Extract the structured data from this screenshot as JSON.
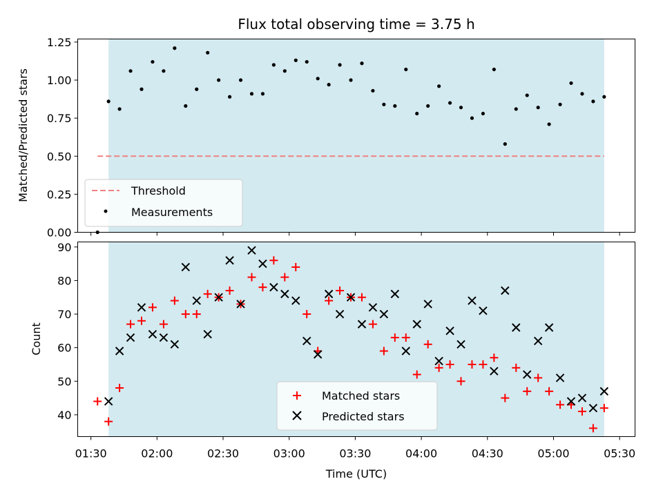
{
  "chart_data": [
    {
      "type": "scatter",
      "title": "Flux total observing time = 3.75 h",
      "xlabel": "",
      "ylabel": "Matched/Predicted stars",
      "ylim": [
        0,
        1.27
      ],
      "yticks": [
        "0.00",
        "0.25",
        "0.50",
        "0.75",
        "1.00",
        "1.25"
      ],
      "ytick_values": [
        0,
        0.25,
        0.5,
        0.75,
        1.0,
        1.25
      ],
      "observing_window": [
        "01:38",
        "05:23"
      ],
      "threshold": {
        "name": "Threshold",
        "value": 0.5,
        "x_start": "01:33",
        "x_end": "05:23",
        "color": "#f08080"
      },
      "legend": {
        "placement": "lower-left",
        "entries": [
          "Threshold",
          "Measurements"
        ]
      },
      "series": [
        {
          "name": "Measurements",
          "color": "#000000",
          "x": [
            "01:33",
            "01:38",
            "01:43",
            "01:48",
            "01:53",
            "01:58",
            "02:03",
            "02:08",
            "02:13",
            "02:18",
            "02:23",
            "02:28",
            "02:33",
            "02:38",
            "02:43",
            "02:48",
            "02:53",
            "02:58",
            "03:03",
            "03:08",
            "03:13",
            "03:18",
            "03:23",
            "03:28",
            "03:33",
            "03:38",
            "03:43",
            "03:48",
            "03:53",
            "03:58",
            "04:03",
            "04:08",
            "04:13",
            "04:18",
            "04:23",
            "04:28",
            "04:33",
            "04:38",
            "04:43",
            "04:48",
            "04:53",
            "04:58",
            "05:03",
            "05:08",
            "05:13",
            "05:18",
            "05:23"
          ],
          "y": [
            0.0,
            0.86,
            0.81,
            1.06,
            0.94,
            1.12,
            1.06,
            1.21,
            0.83,
            0.94,
            1.18,
            1.0,
            0.89,
            1.0,
            0.91,
            0.91,
            1.1,
            1.06,
            1.13,
            1.12,
            1.01,
            0.97,
            1.1,
            1.0,
            1.11,
            0.93,
            0.84,
            0.83,
            1.07,
            0.78,
            0.83,
            0.96,
            0.85,
            0.82,
            0.75,
            0.78,
            1.07,
            0.58,
            0.81,
            0.9,
            0.82,
            0.71,
            0.84,
            0.98,
            0.91,
            0.86,
            0.89
          ]
        }
      ]
    },
    {
      "type": "scatter",
      "title": "",
      "xlabel": "Time (UTC)",
      "ylabel": "Count",
      "ylim": [
        33.5,
        91.5
      ],
      "yticks": [
        "40",
        "50",
        "60",
        "70",
        "80",
        "90"
      ],
      "ytick_values": [
        40,
        50,
        60,
        70,
        80,
        90
      ],
      "xticks": [
        "01:30",
        "02:00",
        "02:30",
        "03:00",
        "03:30",
        "04:00",
        "04:30",
        "05:00",
        "05:30"
      ],
      "xlim": [
        "01:24",
        "05:37"
      ],
      "observing_window": [
        "01:38",
        "05:23"
      ],
      "legend": {
        "placement": "lower-center",
        "entries": [
          "Matched stars",
          "Predicted stars"
        ]
      },
      "series": [
        {
          "name": "Matched stars",
          "marker": "plus",
          "color": "#ff0000",
          "x": [
            "01:33",
            "01:38",
            "01:43",
            "01:48",
            "01:53",
            "01:58",
            "02:03",
            "02:08",
            "02:13",
            "02:18",
            "02:23",
            "02:28",
            "02:33",
            "02:38",
            "02:43",
            "02:48",
            "02:53",
            "02:58",
            "03:03",
            "03:08",
            "03:13",
            "03:18",
            "03:23",
            "03:28",
            "03:33",
            "03:38",
            "03:43",
            "03:48",
            "03:53",
            "03:58",
            "04:03",
            "04:08",
            "04:13",
            "04:18",
            "04:23",
            "04:28",
            "04:33",
            "04:38",
            "04:43",
            "04:48",
            "04:53",
            "04:58",
            "05:03",
            "05:08",
            "05:13",
            "05:18",
            "05:23"
          ],
          "y": [
            44,
            38,
            48,
            67,
            68,
            72,
            67,
            74,
            70,
            70,
            76,
            75,
            77,
            73,
            81,
            78,
            86,
            81,
            84,
            70,
            59,
            74,
            77,
            75,
            75,
            67,
            59,
            63,
            63,
            52,
            61,
            54,
            55,
            50,
            55,
            55,
            57,
            45,
            54,
            47,
            51,
            47,
            43,
            43,
            41,
            36,
            42
          ]
        },
        {
          "name": "Predicted stars",
          "marker": "x",
          "color": "#000000",
          "x": [
            "01:38",
            "01:43",
            "01:48",
            "01:53",
            "01:58",
            "02:03",
            "02:08",
            "02:13",
            "02:18",
            "02:23",
            "02:28",
            "02:33",
            "02:38",
            "02:43",
            "02:48",
            "02:53",
            "02:58",
            "03:03",
            "03:08",
            "03:13",
            "03:18",
            "03:23",
            "03:28",
            "03:33",
            "03:38",
            "03:43",
            "03:48",
            "03:53",
            "03:58",
            "04:03",
            "04:08",
            "04:13",
            "04:18",
            "04:23",
            "04:28",
            "04:33",
            "04:38",
            "04:43",
            "04:48",
            "04:53",
            "04:58",
            "05:03",
            "05:08",
            "05:13",
            "05:18",
            "05:23"
          ],
          "y": [
            44,
            59,
            63,
            72,
            64,
            63,
            61,
            84,
            74,
            64,
            75,
            86,
            73,
            89,
            85,
            78,
            76,
            74,
            62,
            58,
            76,
            70,
            75,
            67,
            72,
            70,
            76,
            59,
            67,
            73,
            56,
            65,
            61,
            74,
            71,
            53,
            77,
            66,
            52,
            62,
            66,
            51,
            44,
            45,
            42,
            47
          ]
        }
      ]
    }
  ]
}
